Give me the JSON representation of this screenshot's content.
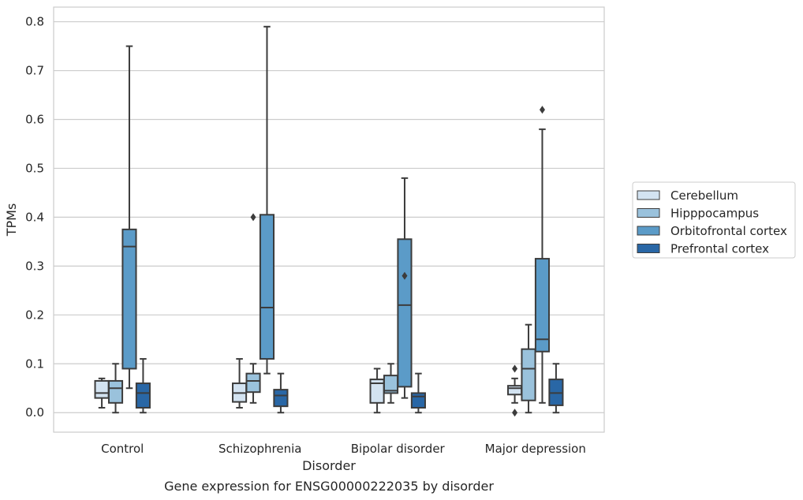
{
  "chart_data": {
    "type": "box",
    "title": "Gene expression for ENSG00000222035 by disorder",
    "xlabel": "Disorder",
    "ylabel": "TPMs",
    "ylim": [
      -0.04,
      0.83
    ],
    "yticks": [
      0.0,
      0.1,
      0.2,
      0.3,
      0.4,
      0.5,
      0.6,
      0.7,
      0.8
    ],
    "ytick_labels": [
      "0.0",
      "0.1",
      "0.2",
      "0.3",
      "0.4",
      "0.5",
      "0.6",
      "0.7",
      "0.8"
    ],
    "grid": true,
    "legend_position": "right",
    "categories": [
      "Control",
      "Schizophrenia",
      "Bipolar disorder",
      "Major depression"
    ],
    "series": [
      {
        "name": "Cerebellum",
        "color": "#d3e3f1",
        "boxes": [
          {
            "min": 0.01,
            "q1": 0.03,
            "median": 0.04,
            "q3": 0.065,
            "max": 0.07,
            "outliers": []
          },
          {
            "min": 0.01,
            "q1": 0.022,
            "median": 0.04,
            "q3": 0.06,
            "max": 0.11,
            "outliers": []
          },
          {
            "min": 0.0,
            "q1": 0.02,
            "median": 0.06,
            "q3": 0.068,
            "max": 0.09,
            "outliers": []
          },
          {
            "min": 0.02,
            "q1": 0.037,
            "median": 0.05,
            "q3": 0.055,
            "max": 0.07,
            "outliers": [
              0.09,
              0.0
            ]
          }
        ]
      },
      {
        "name": "Hipppocampus",
        "color": "#9ac2dc",
        "boxes": [
          {
            "min": 0.0,
            "q1": 0.02,
            "median": 0.05,
            "q3": 0.065,
            "max": 0.1,
            "outliers": []
          },
          {
            "min": 0.02,
            "q1": 0.042,
            "median": 0.065,
            "q3": 0.08,
            "max": 0.1,
            "outliers": [
              0.4
            ]
          },
          {
            "min": 0.02,
            "q1": 0.04,
            "median": 0.045,
            "q3": 0.076,
            "max": 0.1,
            "outliers": []
          },
          {
            "min": 0.0,
            "q1": 0.025,
            "median": 0.09,
            "q3": 0.13,
            "max": 0.18,
            "outliers": []
          }
        ]
      },
      {
        "name": "Orbitofrontal cortex",
        "color": "#5b9bc8",
        "boxes": [
          {
            "min": 0.05,
            "q1": 0.09,
            "median": 0.34,
            "q3": 0.375,
            "max": 0.75,
            "outliers": []
          },
          {
            "min": 0.08,
            "q1": 0.11,
            "median": 0.215,
            "q3": 0.405,
            "max": 0.79,
            "outliers": []
          },
          {
            "min": 0.03,
            "q1": 0.053,
            "median": 0.22,
            "q3": 0.355,
            "max": 0.48,
            "outliers": [
              0.28
            ]
          },
          {
            "min": 0.02,
            "q1": 0.125,
            "median": 0.15,
            "q3": 0.315,
            "max": 0.58,
            "outliers": [
              0.62
            ]
          }
        ]
      },
      {
        "name": "Prefrontal cortex",
        "color": "#2967a6",
        "boxes": [
          {
            "min": 0.0,
            "q1": 0.01,
            "median": 0.04,
            "q3": 0.06,
            "max": 0.11,
            "outliers": []
          },
          {
            "min": 0.0,
            "q1": 0.013,
            "median": 0.035,
            "q3": 0.047,
            "max": 0.08,
            "outliers": []
          },
          {
            "min": 0.0,
            "q1": 0.01,
            "median": 0.033,
            "q3": 0.04,
            "max": 0.08,
            "outliers": []
          },
          {
            "min": 0.0,
            "q1": 0.015,
            "median": 0.04,
            "q3": 0.068,
            "max": 0.1,
            "outliers": []
          }
        ]
      }
    ]
  }
}
